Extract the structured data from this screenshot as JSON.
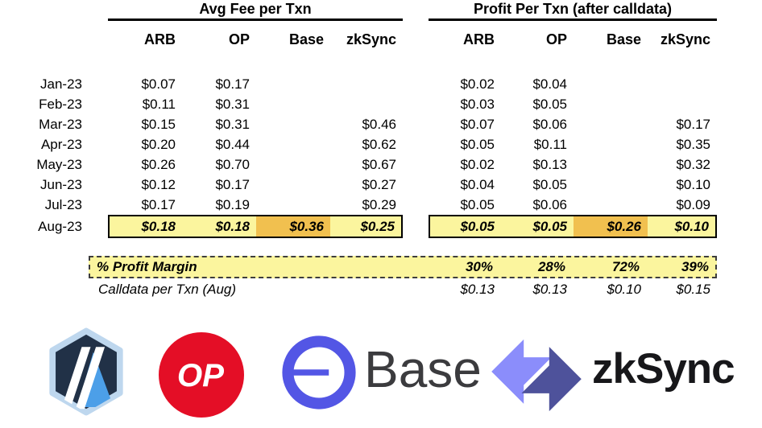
{
  "colors": {
    "highlight_yellow": "#FBF59E",
    "highlight_orange": "#F1C04F",
    "op_red": "#E40E26",
    "arbitrum_navy": "#213147",
    "arbitrum_blue": "#4C9FE8",
    "arbitrum_border": "#BED7EE",
    "base_blue": "#5356E5",
    "zksync_light": "#8B8DFB",
    "zksync_dark": "#4E529B"
  },
  "months": [
    "Jan-23",
    "Feb-23",
    "Mar-23",
    "Apr-23",
    "May-23",
    "Jun-23",
    "Jul-23",
    "Aug-23"
  ],
  "fee_table": {
    "title": "Avg Fee per Txn",
    "columns": [
      "ARB",
      "OP",
      "Base",
      "zkSync"
    ],
    "rows": [
      [
        "$0.07",
        "$0.17",
        "",
        ""
      ],
      [
        "$0.11",
        "$0.31",
        "",
        ""
      ],
      [
        "$0.15",
        "$0.31",
        "",
        "$0.46"
      ],
      [
        "$0.20",
        "$0.44",
        "",
        "$0.62"
      ],
      [
        "$0.26",
        "$0.70",
        "",
        "$0.67"
      ],
      [
        "$0.12",
        "$0.17",
        "",
        "$0.27"
      ],
      [
        "$0.17",
        "$0.19",
        "",
        "$0.29"
      ],
      [
        "$0.18",
        "$0.18",
        "$0.36",
        "$0.25"
      ]
    ]
  },
  "profit_table": {
    "title": "Profit Per Txn (after calldata)",
    "columns": [
      "ARB",
      "OP",
      "Base",
      "zkSync"
    ],
    "rows": [
      [
        "$0.02",
        "$0.04",
        "",
        ""
      ],
      [
        "$0.03",
        "$0.05",
        "",
        ""
      ],
      [
        "$0.07",
        "$0.06",
        "",
        "$0.17"
      ],
      [
        "$0.05",
        "$0.11",
        "",
        "$0.35"
      ],
      [
        "$0.02",
        "$0.13",
        "",
        "$0.32"
      ],
      [
        "$0.04",
        "$0.05",
        "",
        "$0.10"
      ],
      [
        "$0.05",
        "$0.06",
        "",
        "$0.09"
      ],
      [
        "$0.05",
        "$0.05",
        "$0.26",
        "$0.10"
      ]
    ]
  },
  "profit_margin": {
    "label": "% Profit Margin",
    "values": [
      "30%",
      "28%",
      "72%",
      "39%"
    ]
  },
  "calldata": {
    "label": "Calldata per Txn (Aug)",
    "values": [
      "$0.13",
      "$0.13",
      "$0.10",
      "$0.15"
    ]
  },
  "logos": {
    "op_label": "OP",
    "base_label": "Base",
    "zksync_label": "zkSync"
  },
  "chart_data": {
    "type": "table",
    "tables": [
      {
        "title": "Avg Fee per Txn",
        "columns": [
          "ARB",
          "OP",
          "Base",
          "zkSync"
        ],
        "row_labels": [
          "Jan-23",
          "Feb-23",
          "Mar-23",
          "Apr-23",
          "May-23",
          "Jun-23",
          "Jul-23",
          "Aug-23"
        ],
        "values_usd": [
          [
            0.07,
            0.17,
            null,
            null
          ],
          [
            0.11,
            0.31,
            null,
            null
          ],
          [
            0.15,
            0.31,
            null,
            0.46
          ],
          [
            0.2,
            0.44,
            null,
            0.62
          ],
          [
            0.26,
            0.7,
            null,
            0.67
          ],
          [
            0.12,
            0.17,
            null,
            0.27
          ],
          [
            0.17,
            0.19,
            null,
            0.29
          ],
          [
            0.18,
            0.18,
            0.36,
            0.25
          ]
        ]
      },
      {
        "title": "Profit Per Txn (after calldata)",
        "columns": [
          "ARB",
          "OP",
          "Base",
          "zkSync"
        ],
        "row_labels": [
          "Jan-23",
          "Feb-23",
          "Mar-23",
          "Apr-23",
          "May-23",
          "Jun-23",
          "Jul-23",
          "Aug-23"
        ],
        "values_usd": [
          [
            0.02,
            0.04,
            null,
            null
          ],
          [
            0.03,
            0.05,
            null,
            null
          ],
          [
            0.07,
            0.06,
            null,
            0.17
          ],
          [
            0.05,
            0.11,
            null,
            0.35
          ],
          [
            0.02,
            0.13,
            null,
            0.32
          ],
          [
            0.04,
            0.05,
            null,
            0.1
          ],
          [
            0.05,
            0.06,
            null,
            0.09
          ],
          [
            0.05,
            0.05,
            0.26,
            0.1
          ]
        ]
      }
    ],
    "profit_margin_pct": {
      "ARB": 30,
      "OP": 28,
      "Base": 72,
      "zkSync": 39
    },
    "calldata_per_txn_aug_usd": {
      "ARB": 0.13,
      "OP": 0.13,
      "Base": 0.1,
      "zkSync": 0.15
    },
    "highlighted_row": "Aug-23",
    "layout": "two side-by-side tables sharing month row labels; Aug-23 row highlighted yellow with Base cell orange"
  }
}
